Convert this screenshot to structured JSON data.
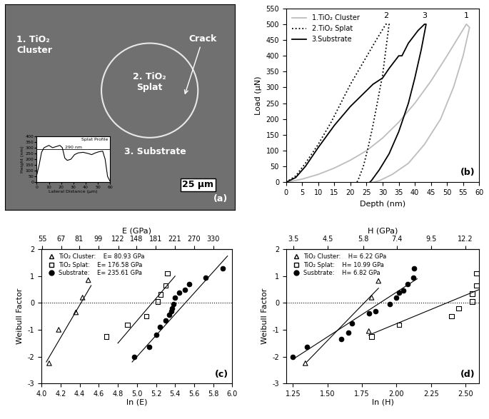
{
  "chart_data": [
    {
      "type": "image",
      "label": "(a)",
      "tick_labels": false,
      "annotations": [
        "1. TiO₂\nCluster",
        "2. TiO₂\nSplat",
        "Crack",
        "3. Substrate"
      ],
      "scale_bar": "25 μm",
      "inset": {
        "type": "line",
        "title": "Splat Profile",
        "x_label": "Lateral Distance (μm)",
        "y_label": "Height (nm)",
        "x": [
          0,
          2,
          4,
          6,
          8,
          10,
          13,
          16,
          19,
          21,
          23,
          25,
          28,
          31,
          34,
          38,
          42,
          45,
          48,
          51,
          54,
          56,
          58,
          60
        ],
        "values": [
          60,
          150,
          260,
          300,
          310,
          320,
          300,
          310,
          320,
          300,
          210,
          190,
          200,
          240,
          255,
          260,
          250,
          240,
          255,
          265,
          270,
          200,
          50,
          10
        ],
        "color": "#000000",
        "xlim": [
          0,
          60
        ],
        "ylim": [
          0,
          400
        ],
        "xticks": [
          0,
          10,
          20,
          30,
          40,
          50,
          60
        ],
        "yticks": [
          0,
          50,
          100,
          150,
          200,
          250,
          300,
          350,
          400
        ],
        "reference": {
          "value": 290,
          "label": "290 nm"
        }
      }
    },
    {
      "type": "line",
      "label": "(b)",
      "x_label": "Depth (nm)",
      "y_label": "Load (μN)",
      "xlim": [
        0,
        60
      ],
      "ylim": [
        0,
        550
      ],
      "xticks": [
        0,
        5,
        10,
        15,
        20,
        25,
        30,
        35,
        40,
        45,
        50,
        55,
        60
      ],
      "yticks": [
        0,
        50,
        100,
        150,
        200,
        250,
        300,
        350,
        400,
        450,
        500,
        550
      ],
      "legend": "upper left",
      "series": [
        {
          "name": "1.TiO₂ Cluster",
          "color": "#bdbdbd",
          "line_style": "solid",
          "x": [
            0,
            5,
            10,
            15,
            20,
            25,
            30,
            35,
            40,
            45,
            50,
            53,
            56,
            57,
            55,
            52,
            48,
            43,
            38,
            33,
            29,
            27
          ],
          "values": [
            0,
            10,
            25,
            45,
            70,
            100,
            140,
            190,
            250,
            320,
            400,
            450,
            500,
            490,
            400,
            300,
            200,
            120,
            60,
            25,
            5,
            0
          ]
        },
        {
          "name": "2.TiO₂ Splat",
          "color": "#000000",
          "line_style": "dotted",
          "x": [
            0,
            3,
            6,
            10,
            14,
            17,
            20,
            24,
            28,
            31,
            32,
            31,
            30,
            28.5,
            27,
            25.5,
            24,
            22.5,
            22
          ],
          "values": [
            0,
            20,
            60,
            120,
            190,
            250,
            310,
            380,
            450,
            500,
            500,
            420,
            340,
            260,
            180,
            110,
            50,
            10,
            0
          ]
        },
        {
          "name": "3.Substrate",
          "color": "#000000",
          "line_style": "solid",
          "x": [
            0,
            3,
            6,
            10,
            15,
            20,
            25,
            27,
            30,
            32,
            35,
            36,
            38,
            41,
            43,
            43.5,
            42,
            40,
            38,
            35,
            32,
            29,
            26.5,
            26
          ],
          "values": [
            0,
            15,
            50,
            110,
            180,
            240,
            290,
            310,
            330,
            360,
            400,
            400,
            440,
            480,
            500,
            500,
            420,
            330,
            250,
            160,
            90,
            40,
            5,
            0
          ]
        }
      ],
      "annotations": [
        {
          "text": "1",
          "x": 56,
          "y": 515
        },
        {
          "text": "2",
          "x": 31,
          "y": 515
        },
        {
          "text": "3",
          "x": 43,
          "y": 515
        }
      ]
    },
    {
      "type": "scatter",
      "label": "(c)",
      "x_label": "ln (E)",
      "y_label": "Weibull Factor",
      "top_axis": {
        "label": "E (GPa)",
        "ticks": [
          55,
          67,
          81,
          99,
          122,
          148,
          181,
          221,
          270,
          330
        ]
      },
      "xlim": [
        4.0,
        6.0
      ],
      "ylim": [
        -3,
        2
      ],
      "xticks": [
        4.0,
        4.2,
        4.4,
        4.6,
        4.8,
        5.0,
        5.2,
        5.4,
        5.6,
        5.8,
        6.0
      ],
      "yticks": [
        -3,
        -2,
        -1,
        0,
        1,
        2
      ],
      "legend": "upper left",
      "reference_line": 0,
      "series": [
        {
          "name": "TiO₂ Cluster:",
          "stat": "E= 80.93 GPa",
          "marker": "open_triangle",
          "color": "#000000",
          "x": [
            4.08,
            4.18,
            4.36,
            4.43,
            4.49
          ],
          "values": [
            -2.25,
            -1.0,
            -0.35,
            0.2,
            0.85
          ],
          "fit_x": [
            4.05,
            4.52
          ],
          "fit_y": [
            -2.2,
            0.65
          ]
        },
        {
          "name": "TiO₂ Splat:",
          "stat": "E= 176.58 GPa",
          "marker": "open_square",
          "color": "#000000",
          "x": [
            4.68,
            4.9,
            5.1,
            5.22,
            5.25,
            5.3,
            5.32
          ],
          "values": [
            -1.25,
            -0.82,
            -0.5,
            0.05,
            0.32,
            0.65,
            1.1
          ],
          "fit_x": [
            4.8,
            5.4
          ],
          "fit_y": [
            -1.5,
            1.0
          ]
        },
        {
          "name": "Substrate:",
          "stat": "E= 235.61 GPa",
          "marker": "filled_circle",
          "color": "#000000",
          "x": [
            4.97,
            5.13,
            5.2,
            5.24,
            5.3,
            5.34,
            5.36,
            5.37,
            5.38,
            5.4,
            5.44,
            5.5,
            5.55,
            5.72,
            5.9
          ],
          "values": [
            -2.02,
            -1.65,
            -1.2,
            -0.9,
            -0.65,
            -0.45,
            -0.3,
            -0.2,
            -0.05,
            0.2,
            0.38,
            0.5,
            0.7,
            0.95,
            1.3
          ],
          "fit_x": [
            4.95,
            5.95
          ],
          "fit_y": [
            -2.2,
            1.75
          ]
        }
      ]
    },
    {
      "type": "scatter",
      "label": "(d)",
      "x_label": "ln (H)",
      "y_label": "Weibull Factor",
      "top_axis": {
        "label": "H (GPa)",
        "ticks": [
          3.5,
          4.5,
          5.8,
          7.4,
          9.5,
          12.2
        ]
      },
      "xlim": [
        1.2,
        2.6
      ],
      "ylim": [
        -3,
        2
      ],
      "xticks": [
        1.25,
        {
          "value": 1.5,
          "label": "1.50"
        },
        1.75,
        {
          "value": 2.0,
          "label": "2.00"
        },
        2.25,
        {
          "value": 2.5,
          "label": "2.50"
        }
      ],
      "yticks": [
        -3,
        -2,
        -1,
        0,
        1,
        2
      ],
      "legend": "upper left",
      "reference_line": 0,
      "series": [
        {
          "name": "TiO₂ Cluster:",
          "stat": "H= 6.22 GPa",
          "marker": "open_triangle",
          "color": "#000000",
          "x": [
            1.34,
            1.8,
            1.82,
            1.87
          ],
          "values": [
            -2.25,
            -1.05,
            0.2,
            0.82
          ],
          "fit_x": [
            1.35,
            1.87
          ],
          "fit_y": [
            -2.2,
            0.55
          ]
        },
        {
          "name": "TiO₂ Splat:",
          "stat": "H= 10.99 GPa",
          "marker": "open_square",
          "color": "#000000",
          "x": [
            1.82,
            2.02,
            2.4,
            2.45,
            2.55,
            2.55,
            2.58,
            2.58
          ],
          "values": [
            -1.25,
            -0.82,
            -0.5,
            -0.2,
            0.05,
            0.35,
            0.65,
            1.1
          ],
          "fit_x": [
            1.8,
            2.6
          ],
          "fit_y": [
            -1.2,
            0.5
          ]
        },
        {
          "name": "Susbtrate:",
          "stat": "H= 6.82 GPa",
          "marker": "filled_circle",
          "color": "#000000",
          "x": [
            1.25,
            1.35,
            1.6,
            1.65,
            1.68,
            1.8,
            1.85,
            1.95,
            2.0,
            2.02,
            2.05,
            2.08,
            2.12,
            2.13
          ],
          "values": [
            -2.02,
            -1.65,
            -1.35,
            -1.1,
            -0.75,
            -0.4,
            -0.3,
            -0.05,
            0.2,
            0.38,
            0.45,
            0.7,
            0.95,
            1.3
          ],
          "fit_x": [
            1.25,
            2.15
          ],
          "fit_y": [
            -2.1,
            0.9
          ]
        }
      ]
    }
  ]
}
